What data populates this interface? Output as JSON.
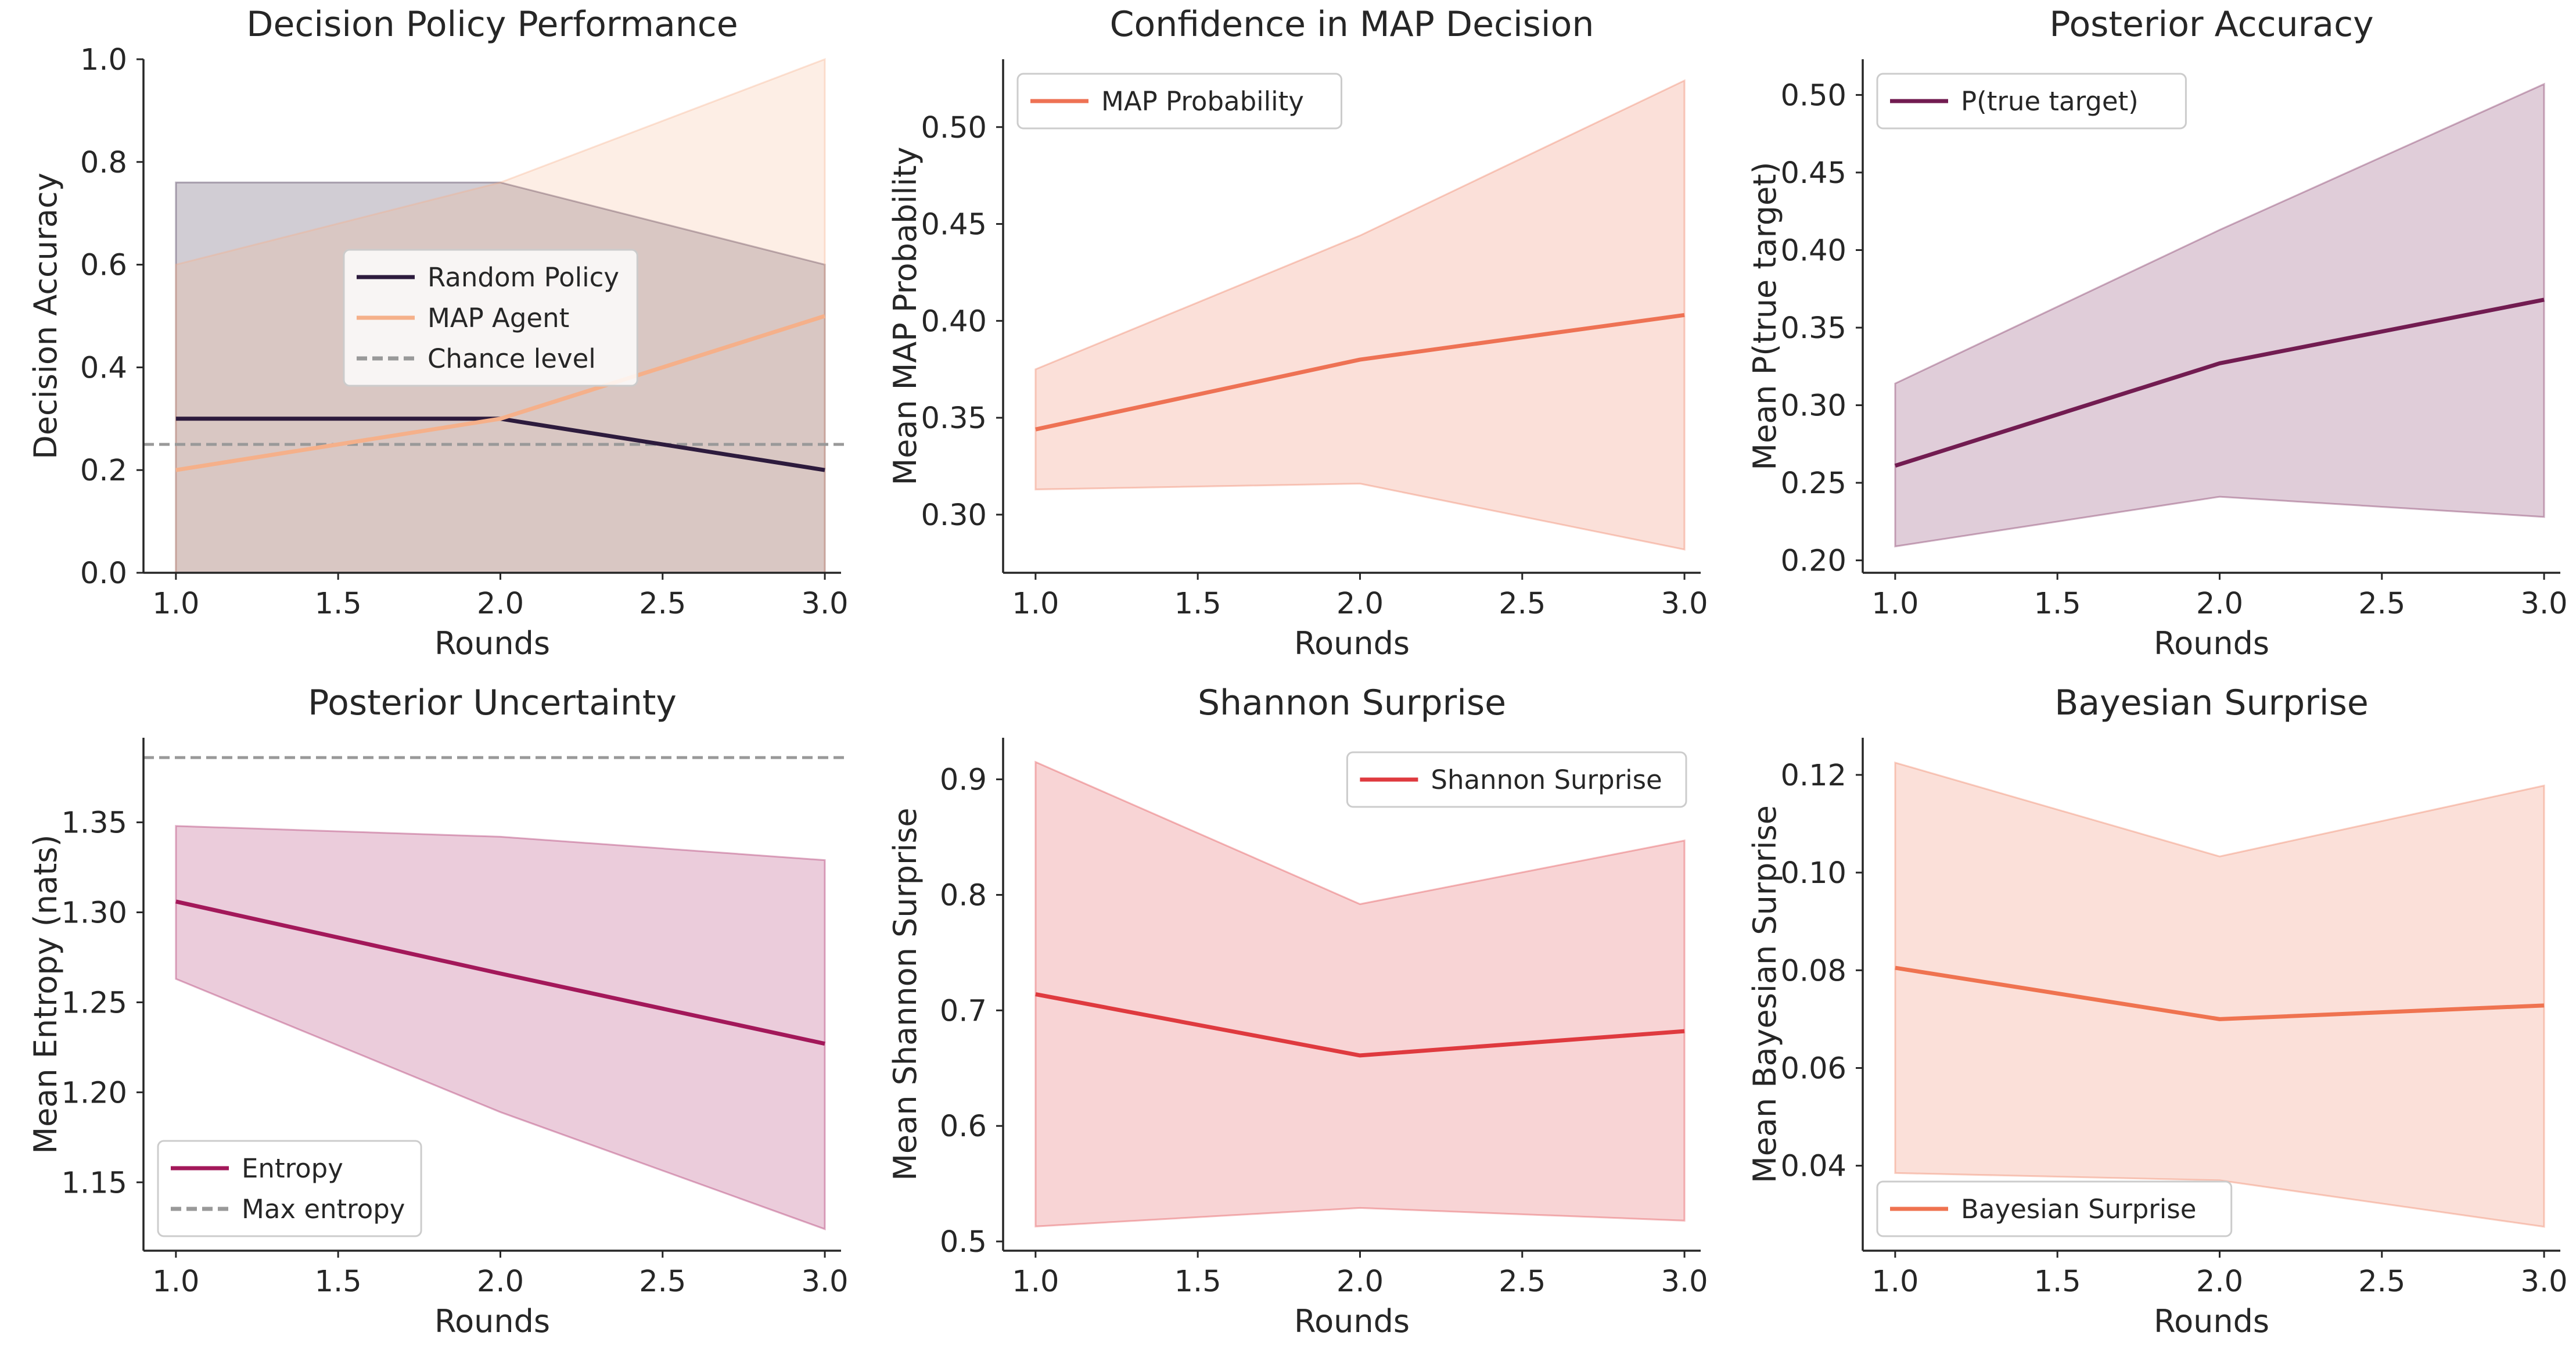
{
  "chart_data": [
    {
      "type": "line",
      "title": "Decision Policy Performance",
      "xlabel": "Rounds",
      "ylabel": "Decision Accuracy",
      "xlim": [
        0.9,
        3.05
      ],
      "ylim": [
        0.0,
        1.0
      ],
      "xticks": [
        "1.0",
        "1.5",
        "2.0",
        "2.5",
        "3.0"
      ],
      "yticks": [
        "0.0",
        "0.2",
        "0.4",
        "0.6",
        "0.8",
        "1.0"
      ],
      "legend": "center",
      "grid": false,
      "x": [
        1.0,
        2.0,
        3.0
      ],
      "series": [
        {
          "name": "Random Policy",
          "color": "#2d1b3d",
          "values": [
            0.3,
            0.3,
            0.2
          ],
          "band_lower": [
            0.0,
            0.0,
            0.0
          ],
          "band_upper": [
            0.76,
            0.76,
            0.6
          ]
        },
        {
          "name": "MAP Agent",
          "color": "#f5b08a",
          "values": [
            0.2,
            0.3,
            0.5
          ],
          "band_lower": [
            0.0,
            0.0,
            0.0
          ],
          "band_upper": [
            0.6,
            0.76,
            1.0
          ]
        }
      ],
      "reference_lines": [
        {
          "name": "Chance level",
          "y": 0.25,
          "color": "#999999"
        }
      ]
    },
    {
      "type": "line",
      "title": "Confidence in MAP Decision",
      "xlabel": "Rounds",
      "ylabel": "Mean MAP Probability",
      "xlim": [
        0.9,
        3.05
      ],
      "ylim": [
        0.27,
        0.535
      ],
      "xticks": [
        "1.0",
        "1.5",
        "2.0",
        "2.5",
        "3.0"
      ],
      "yticks": [
        "0.30",
        "0.35",
        "0.40",
        "0.45",
        "0.50"
      ],
      "legend": "top-left",
      "grid": false,
      "x": [
        1.0,
        2.0,
        3.0
      ],
      "series": [
        {
          "name": "MAP Probability",
          "color": "#ee7254",
          "values": [
            0.344,
            0.38,
            0.403
          ],
          "band_lower": [
            0.313,
            0.316,
            0.282
          ],
          "band_upper": [
            0.375,
            0.444,
            0.524
          ]
        }
      ]
    },
    {
      "type": "line",
      "title": "Posterior Accuracy",
      "xlabel": "Rounds",
      "ylabel": "Mean P(true target)",
      "xlim": [
        0.9,
        3.05
      ],
      "ylim": [
        0.192,
        0.523
      ],
      "xticks": [
        "1.0",
        "1.5",
        "2.0",
        "2.5",
        "3.0"
      ],
      "yticks": [
        "0.20",
        "0.25",
        "0.30",
        "0.35",
        "0.40",
        "0.45",
        "0.50"
      ],
      "legend": "top-left",
      "grid": false,
      "x": [
        1.0,
        2.0,
        3.0
      ],
      "series": [
        {
          "name": "P(true target)",
          "color": "#721c51",
          "values": [
            0.261,
            0.327,
            0.368
          ],
          "band_lower": [
            0.209,
            0.241,
            0.228
          ],
          "band_upper": [
            0.314,
            0.413,
            0.507
          ]
        }
      ]
    },
    {
      "type": "line",
      "title": "Posterior Uncertainty",
      "xlabel": "Rounds",
      "ylabel": "Mean Entropy (nats)",
      "xlim": [
        0.9,
        3.05
      ],
      "ylim": [
        1.112,
        1.397
      ],
      "xticks": [
        "1.0",
        "1.5",
        "2.0",
        "2.5",
        "3.0"
      ],
      "yticks": [
        "1.15",
        "1.20",
        "1.25",
        "1.30",
        "1.35"
      ],
      "legend": "bottom-left",
      "grid": false,
      "x": [
        1.0,
        2.0,
        3.0
      ],
      "series": [
        {
          "name": "Entropy",
          "color": "#a3185a",
          "values": [
            1.306,
            1.266,
            1.227
          ],
          "band_lower": [
            1.263,
            1.189,
            1.124
          ],
          "band_upper": [
            1.348,
            1.342,
            1.329
          ]
        }
      ],
      "reference_lines": [
        {
          "name": "Max entropy",
          "y": 1.386,
          "color": "#999999"
        }
      ]
    },
    {
      "type": "line",
      "title": "Shannon Surprise",
      "xlabel": "Rounds",
      "ylabel": "Mean Shannon Surprise",
      "xlim": [
        0.9,
        3.05
      ],
      "ylim": [
        0.492,
        0.936
      ],
      "xticks": [
        "1.0",
        "1.5",
        "2.0",
        "2.5",
        "3.0"
      ],
      "yticks": [
        "0.5",
        "0.6",
        "0.7",
        "0.8",
        "0.9"
      ],
      "legend": "top-right",
      "grid": false,
      "x": [
        1.0,
        2.0,
        3.0
      ],
      "series": [
        {
          "name": "Shannon Surprise",
          "color": "#df3a3f",
          "values": [
            0.714,
            0.661,
            0.682
          ],
          "band_lower": [
            0.513,
            0.529,
            0.518
          ],
          "band_upper": [
            0.915,
            0.792,
            0.847
          ]
        }
      ]
    },
    {
      "type": "line",
      "title": "Bayesian Surprise",
      "xlabel": "Rounds",
      "ylabel": "Mean Bayesian Surprise",
      "xlim": [
        0.9,
        3.05
      ],
      "ylim": [
        0.0226,
        0.1276
      ],
      "xticks": [
        "1.0",
        "1.5",
        "2.0",
        "2.5",
        "3.0"
      ],
      "yticks": [
        "0.04",
        "0.06",
        "0.08",
        "0.10",
        "0.12"
      ],
      "legend": "bottom-left",
      "grid": false,
      "x": [
        1.0,
        2.0,
        3.0
      ],
      "series": [
        {
          "name": "Bayesian Surprise",
          "color": "#ef7350",
          "values": [
            0.0805,
            0.07,
            0.0728
          ],
          "band_lower": [
            0.0385,
            0.037,
            0.0275
          ],
          "band_upper": [
            0.1225,
            0.1033,
            0.1178
          ]
        }
      ]
    }
  ]
}
